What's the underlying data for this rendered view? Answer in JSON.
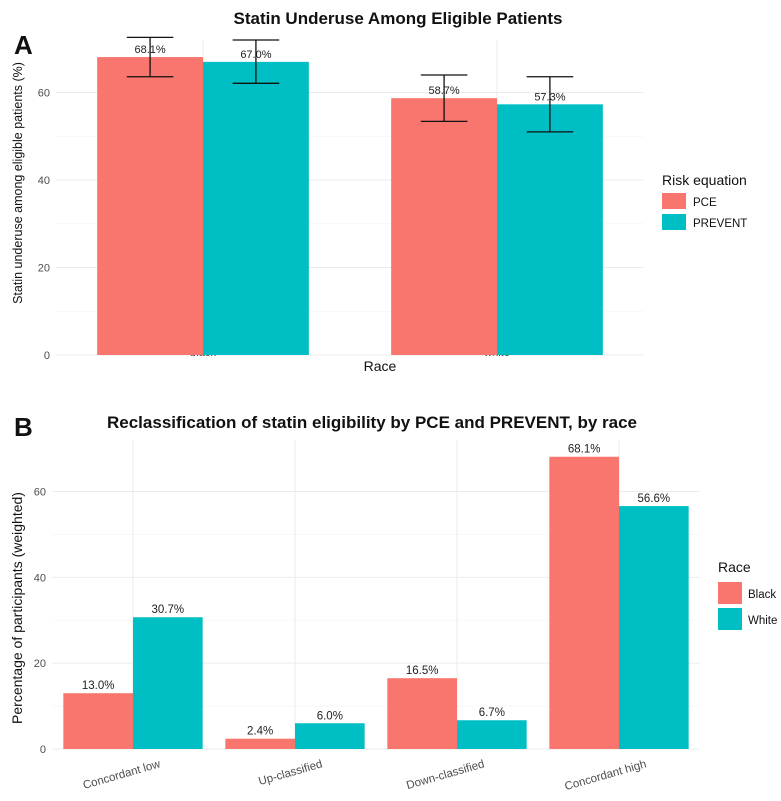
{
  "panels": {
    "a": {
      "letter": "A"
    },
    "b": {
      "letter": "B"
    }
  },
  "colors": {
    "series1": "#F8766D",
    "series2": "#00BFC4",
    "grid": "#EBEBEB",
    "text": "#333333"
  },
  "chart_data": [
    {
      "type": "bar",
      "title": "Statin Underuse Among Eligible Patients",
      "xlabel": "Race",
      "ylabel": "Statin underuse among eligible patients (%)",
      "categories": [
        "black",
        "white"
      ],
      "ylim": [
        0,
        72
      ],
      "yticks": [
        0,
        20,
        40,
        60
      ],
      "grid": true,
      "legend": {
        "title": "Risk equation",
        "position": "right"
      },
      "series": [
        {
          "name": "PCE",
          "values": [
            68.1,
            58.7
          ],
          "labels": [
            "68.1%",
            "58.7%"
          ],
          "error_low": [
            63.6,
            53.4
          ],
          "error_high": [
            72.6,
            64.0
          ]
        },
        {
          "name": "PREVENT",
          "values": [
            67.0,
            57.3
          ],
          "labels": [
            "67.0%",
            "57.3%"
          ],
          "error_low": [
            62.1,
            51.0
          ],
          "error_high": [
            72.0,
            63.6
          ]
        }
      ]
    },
    {
      "type": "bar",
      "title": "Reclassification of statin eligibility by PCE and PREVENT, by race",
      "xlabel": "",
      "ylabel": "Percentage of participants (weighted)",
      "categories": [
        "Concordant low",
        "Up-classified",
        "Down-classified",
        "Concordant high"
      ],
      "ylim": [
        0,
        72
      ],
      "yticks": [
        0,
        20,
        40,
        60
      ],
      "grid": true,
      "legend": {
        "title": "Race",
        "position": "right"
      },
      "series": [
        {
          "name": "Black",
          "values": [
            13.0,
            2.4,
            16.5,
            68.1
          ],
          "labels": [
            "13.0%",
            "2.4%",
            "16.5%",
            "68.1%"
          ]
        },
        {
          "name": "White",
          "values": [
            30.7,
            6.0,
            6.7,
            56.6
          ],
          "labels": [
            "30.7%",
            "6.0%",
            "6.7%",
            "56.6%"
          ]
        }
      ]
    }
  ]
}
